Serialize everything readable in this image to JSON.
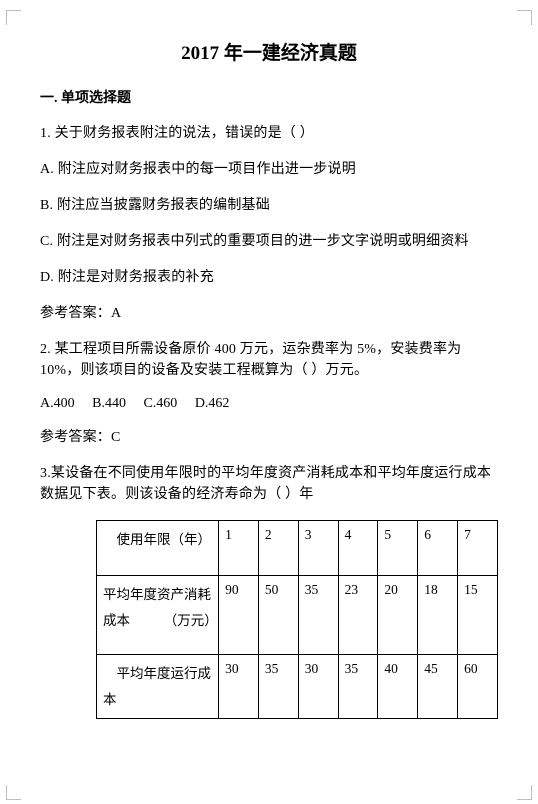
{
  "title": "2017 年一建经济真题",
  "section": "一. 单项选择题",
  "q1": {
    "stem": "1. 关于财务报表附注的说法，错误的是（ ）",
    "a": "A. 附注应对财务报表中的每一项目作出进一步说明",
    "b": "B. 附注应当披露财务报表的编制基础",
    "c": "C. 附注是对财务报表中列式的重要项目的进一步文字说明或明细资料",
    "d": "D. 附注是对财务报表的补充",
    "ans": "参考答案：A"
  },
  "q2": {
    "stem": "2. 某工程项目所需设备原价 400 万元，运杂费率为 5%，安装费率为 10%，则该项目的设备及安装工程概算为（ ）万元。",
    "a": "A.400",
    "b": "B.440",
    "c": "C.460",
    "d": "D.462",
    "ans": "参考答案：C"
  },
  "q3": {
    "stem": "3.某设备在不同使用年限时的平均年度资产消耗成本和平均年度运行成本数据见下表。则该设备的经济寿命为（ ）年",
    "table": {
      "row_head": {
        "r0": "　使用年限（年）",
        "r1": "平均年度资产消耗成本　　　（万元）",
        "r2": "　平均年度运行成本"
      },
      "cols": [
        "1",
        "2",
        "3",
        "4",
        "5",
        "6",
        "7"
      ],
      "r1": [
        "90",
        "50",
        "35",
        "23",
        "20",
        "18",
        "15"
      ],
      "r2": [
        "30",
        "35",
        "30",
        "35",
        "40",
        "45",
        "60"
      ]
    }
  },
  "colors": {
    "text": "#000000",
    "bg": "#ffffff",
    "corner": "#bdbdbd",
    "border": "#000000"
  }
}
